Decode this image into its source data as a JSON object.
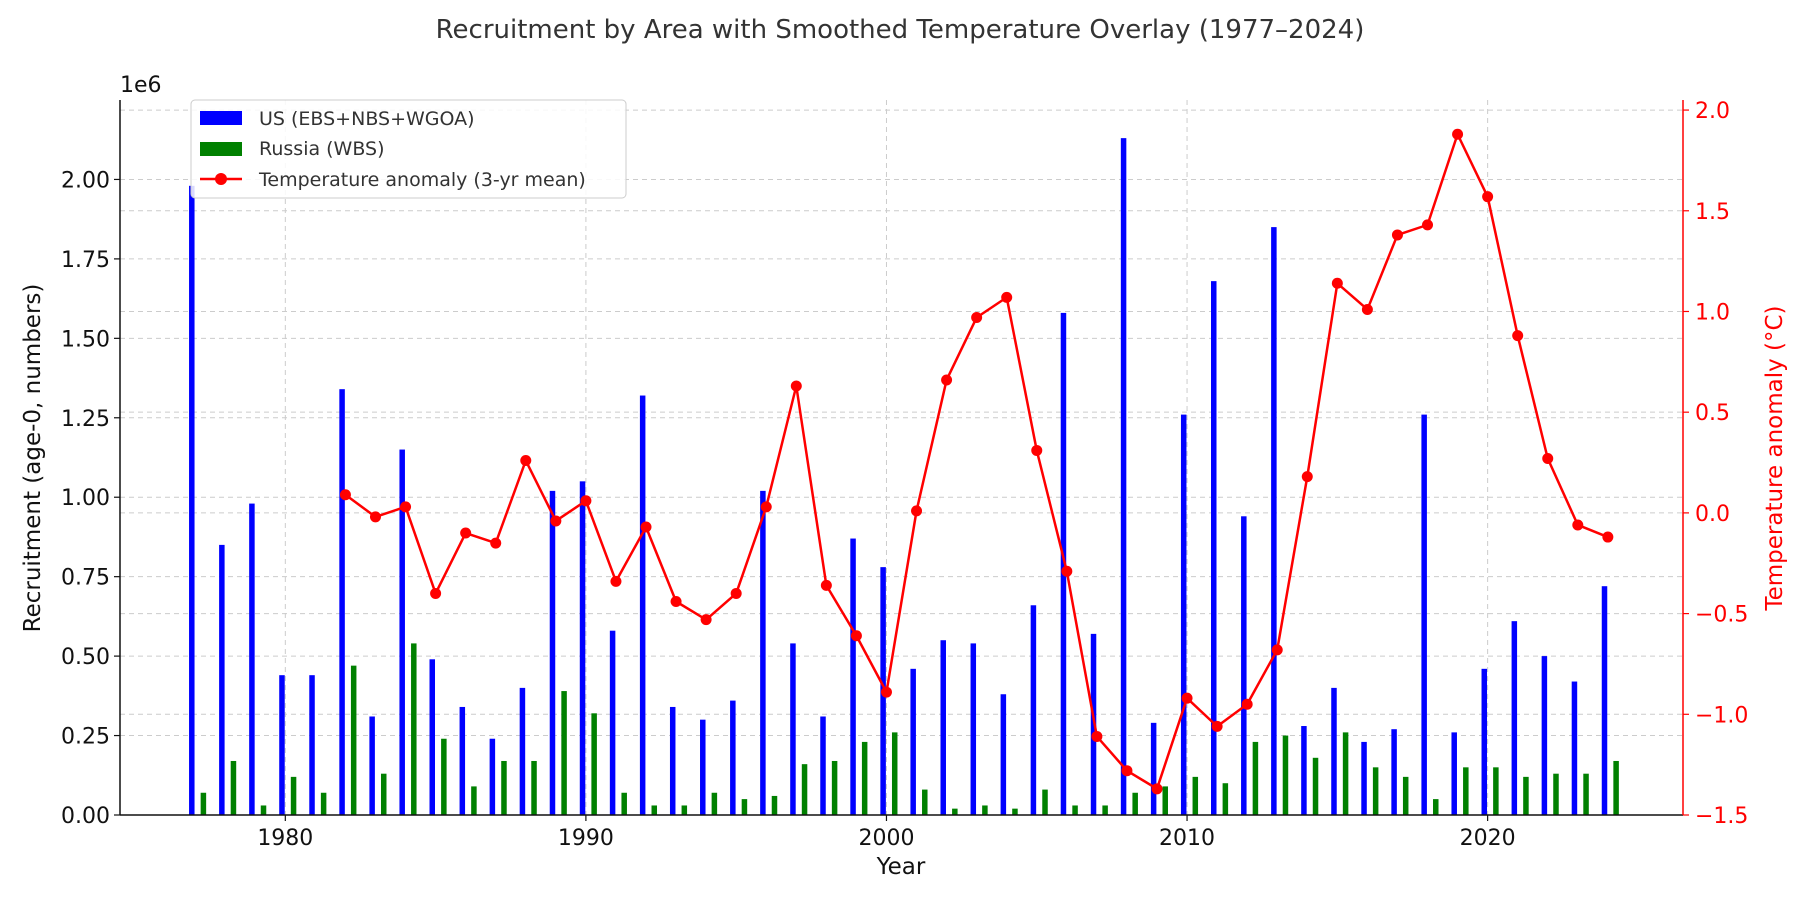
{
  "chart_data": {
    "type": "bar",
    "title": "Recruitment by Area with Smoothed Temperature Overlay (1977–2024)",
    "xlabel": "Year",
    "ylabel": "Recruitment (age-0, numbers)",
    "y_offset_label": "1e6",
    "y2label": "Temperature anomaly (°C)",
    "xlim": [
      1974.5,
      1926.5
    ],
    "ylim": [
      0,
      2.25
    ],
    "y2lim": [
      -1.5,
      2.05
    ],
    "x_ticks": [
      "1980",
      "1990",
      "2000",
      "2010",
      "2020"
    ],
    "y_ticks": [
      "0.00",
      "0.25",
      "0.50",
      "0.75",
      "1.00",
      "1.25",
      "1.50",
      "1.75",
      "2.00"
    ],
    "y2_ticks": [
      "−1.5",
      "−1.0",
      "−0.5",
      "0.0",
      "0.5",
      "1.0",
      "1.5",
      "2.0"
    ],
    "grid": true,
    "legend_position": "top-left",
    "years": [
      1977,
      1978,
      1979,
      1980,
      1981,
      1982,
      1983,
      1984,
      1985,
      1986,
      1987,
      1988,
      1989,
      1990,
      1991,
      1992,
      1993,
      1994,
      1995,
      1996,
      1997,
      1998,
      1999,
      2000,
      2001,
      2002,
      2003,
      2004,
      2005,
      2006,
      2007,
      2008,
      2009,
      2010,
      2011,
      2012,
      2013,
      2014,
      2015,
      2016,
      2017,
      2018,
      2019,
      2020,
      2021,
      2022,
      2023,
      2024
    ],
    "series": [
      {
        "name": "US (EBS+NBS+WGOA)",
        "kind": "bar",
        "axis": "left",
        "color": "#0000ff",
        "values": [
          1.98,
          0.85,
          0.98,
          0.44,
          0.44,
          1.34,
          0.31,
          1.15,
          0.49,
          0.34,
          0.24,
          0.4,
          1.02,
          1.05,
          0.58,
          1.32,
          0.34,
          0.3,
          0.36,
          1.02,
          0.54,
          0.31,
          0.87,
          0.78,
          0.46,
          0.55,
          0.54,
          0.38,
          0.66,
          1.58,
          0.57,
          2.13,
          0.29,
          1.26,
          1.68,
          0.94,
          1.85,
          0.28,
          0.4,
          0.23,
          0.27,
          1.26,
          0.26,
          0.46,
          0.61,
          0.5,
          0.42,
          0.72
        ]
      },
      {
        "name": "Russia (WBS)",
        "kind": "bar",
        "axis": "left",
        "color": "#008000",
        "values": [
          0.07,
          0.17,
          0.03,
          0.12,
          0.07,
          0.47,
          0.13,
          0.54,
          0.24,
          0.09,
          0.17,
          0.17,
          0.39,
          0.32,
          0.07,
          0.03,
          0.03,
          0.07,
          0.05,
          0.06,
          0.16,
          0.17,
          0.23,
          0.26,
          0.08,
          0.02,
          0.03,
          0.02,
          0.08,
          0.03,
          0.03,
          0.07,
          0.09,
          0.12,
          0.1,
          0.23,
          0.25,
          0.18,
          0.26,
          0.15,
          0.12,
          0.05,
          0.15,
          0.15,
          0.12,
          0.13,
          0.13,
          0.17
        ]
      },
      {
        "name": "Temperature anomaly (3-yr mean)",
        "kind": "line",
        "axis": "right",
        "color": "#ff0000",
        "x": [
          1982,
          1983,
          1984,
          1985,
          1986,
          1987,
          1988,
          1989,
          1990,
          1991,
          1992,
          1993,
          1994,
          1995,
          1996,
          1997,
          1998,
          1999,
          2000,
          2001,
          2002,
          2003,
          2004,
          2005,
          2006,
          2007,
          2008,
          2009,
          2010,
          2011,
          2012,
          2013,
          2014,
          2015,
          2016,
          2017,
          2018,
          2019,
          2020,
          2021,
          2022,
          2023,
          2024
        ],
        "values": [
          0.09,
          -0.02,
          0.03,
          -0.4,
          -0.1,
          -0.15,
          0.26,
          -0.04,
          0.06,
          -0.34,
          -0.07,
          -0.44,
          -0.53,
          -0.4,
          0.03,
          0.63,
          -0.36,
          -0.61,
          -0.89,
          0.01,
          0.66,
          0.97,
          1.07,
          0.31,
          -0.29,
          -1.11,
          -1.28,
          -1.37,
          -0.92,
          -1.06,
          -0.95,
          -0.68,
          0.18,
          1.14,
          1.01,
          1.38,
          1.43,
          1.88,
          1.57,
          0.88,
          0.27,
          -0.06,
          -0.12
        ]
      }
    ]
  }
}
